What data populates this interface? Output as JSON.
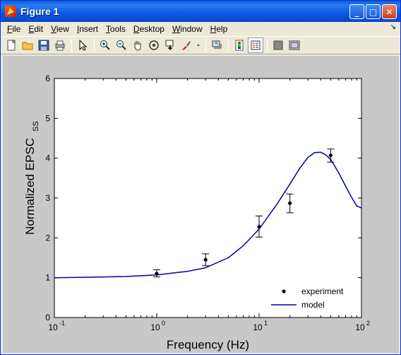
{
  "window": {
    "title": "Figure 1"
  },
  "title_buttons": {
    "minimize": "_",
    "maximize": "□",
    "close": "✕"
  },
  "menu": [
    {
      "label": "File",
      "underline": "F",
      "rest": "ile"
    },
    {
      "label": "Edit",
      "underline": "E",
      "rest": "dit"
    },
    {
      "label": "View",
      "underline": "V",
      "rest": "iew"
    },
    {
      "label": "Insert",
      "underline": "I",
      "rest": "nsert"
    },
    {
      "label": "Tools",
      "underline": "T",
      "rest": "ools"
    },
    {
      "label": "Desktop",
      "underline": "D",
      "rest": "esktop"
    },
    {
      "label": "Window",
      "underline": "W",
      "rest": "indow"
    },
    {
      "label": "Help",
      "underline": "H",
      "rest": "elp"
    }
  ],
  "dock_arrow": "↘",
  "toolbar": [
    "new-figure-icon",
    "open-file-icon",
    "save-icon",
    "print-icon",
    "separator",
    "edit-plot-arrow-icon",
    "separator",
    "zoom-in-icon",
    "zoom-out-icon",
    "pan-hand-icon",
    "rotate-3d-icon",
    "data-cursor-icon",
    "brush-icon",
    "brush-dropdown-icon",
    "separator",
    "link-plot-icon",
    "separator",
    "insert-colorbar-icon",
    "insert-legend-icon",
    "separator",
    "hide-plot-tools-icon",
    "show-plot-tools-icon"
  ],
  "chart_data": {
    "type": "line",
    "xscale": "log",
    "xlim": [
      0.1,
      100
    ],
    "ylim": [
      0,
      6
    ],
    "xlabel": "Frequency (Hz)",
    "ylabel_main": "Normalized EPSC",
    "ylabel_sub": "SS",
    "x_ticks": [
      {
        "base": "10",
        "exp": "-1",
        "value": 0.1
      },
      {
        "base": "10",
        "exp": "0",
        "value": 1
      },
      {
        "base": "10",
        "exp": "1",
        "value": 10
      },
      {
        "base": "10",
        "exp": "2",
        "value": 100
      }
    ],
    "y_ticks": [
      "0",
      "1",
      "2",
      "3",
      "4",
      "5",
      "6"
    ],
    "grid": false,
    "legend": {
      "placement": "bottom-right",
      "entries": [
        {
          "label": "experiment",
          "marker": "dot"
        },
        {
          "label": "model",
          "marker": "line"
        }
      ]
    },
    "series": [
      {
        "name": "experiment",
        "kind": "scatter-errorbar",
        "color": "#000000",
        "points": [
          {
            "x": 1,
            "y": 1.1,
            "upper": 1.2,
            "lower": 1.02
          },
          {
            "x": 3,
            "y": 1.45,
            "upper": 1.6,
            "lower": 1.3
          },
          {
            "x": 10,
            "y": 2.28,
            "upper": 2.55,
            "lower": 2.02
          },
          {
            "x": 20,
            "y": 2.87,
            "upper": 3.1,
            "lower": 2.63
          },
          {
            "x": 50,
            "y": 4.07,
            "upper": 4.23,
            "lower": 3.9
          }
        ]
      },
      {
        "name": "model",
        "kind": "line",
        "color": "#0000aa",
        "x": [
          0.1,
          0.2,
          0.5,
          1,
          2,
          3,
          5,
          7,
          10,
          15,
          20,
          25,
          30,
          35,
          40,
          45,
          50,
          60,
          70,
          80,
          90,
          100
        ],
        "y": [
          1.0,
          1.01,
          1.03,
          1.07,
          1.16,
          1.25,
          1.5,
          1.8,
          2.22,
          2.85,
          3.35,
          3.75,
          4.02,
          4.14,
          4.15,
          4.08,
          3.97,
          3.63,
          3.3,
          3.02,
          2.8,
          2.75
        ]
      }
    ]
  }
}
